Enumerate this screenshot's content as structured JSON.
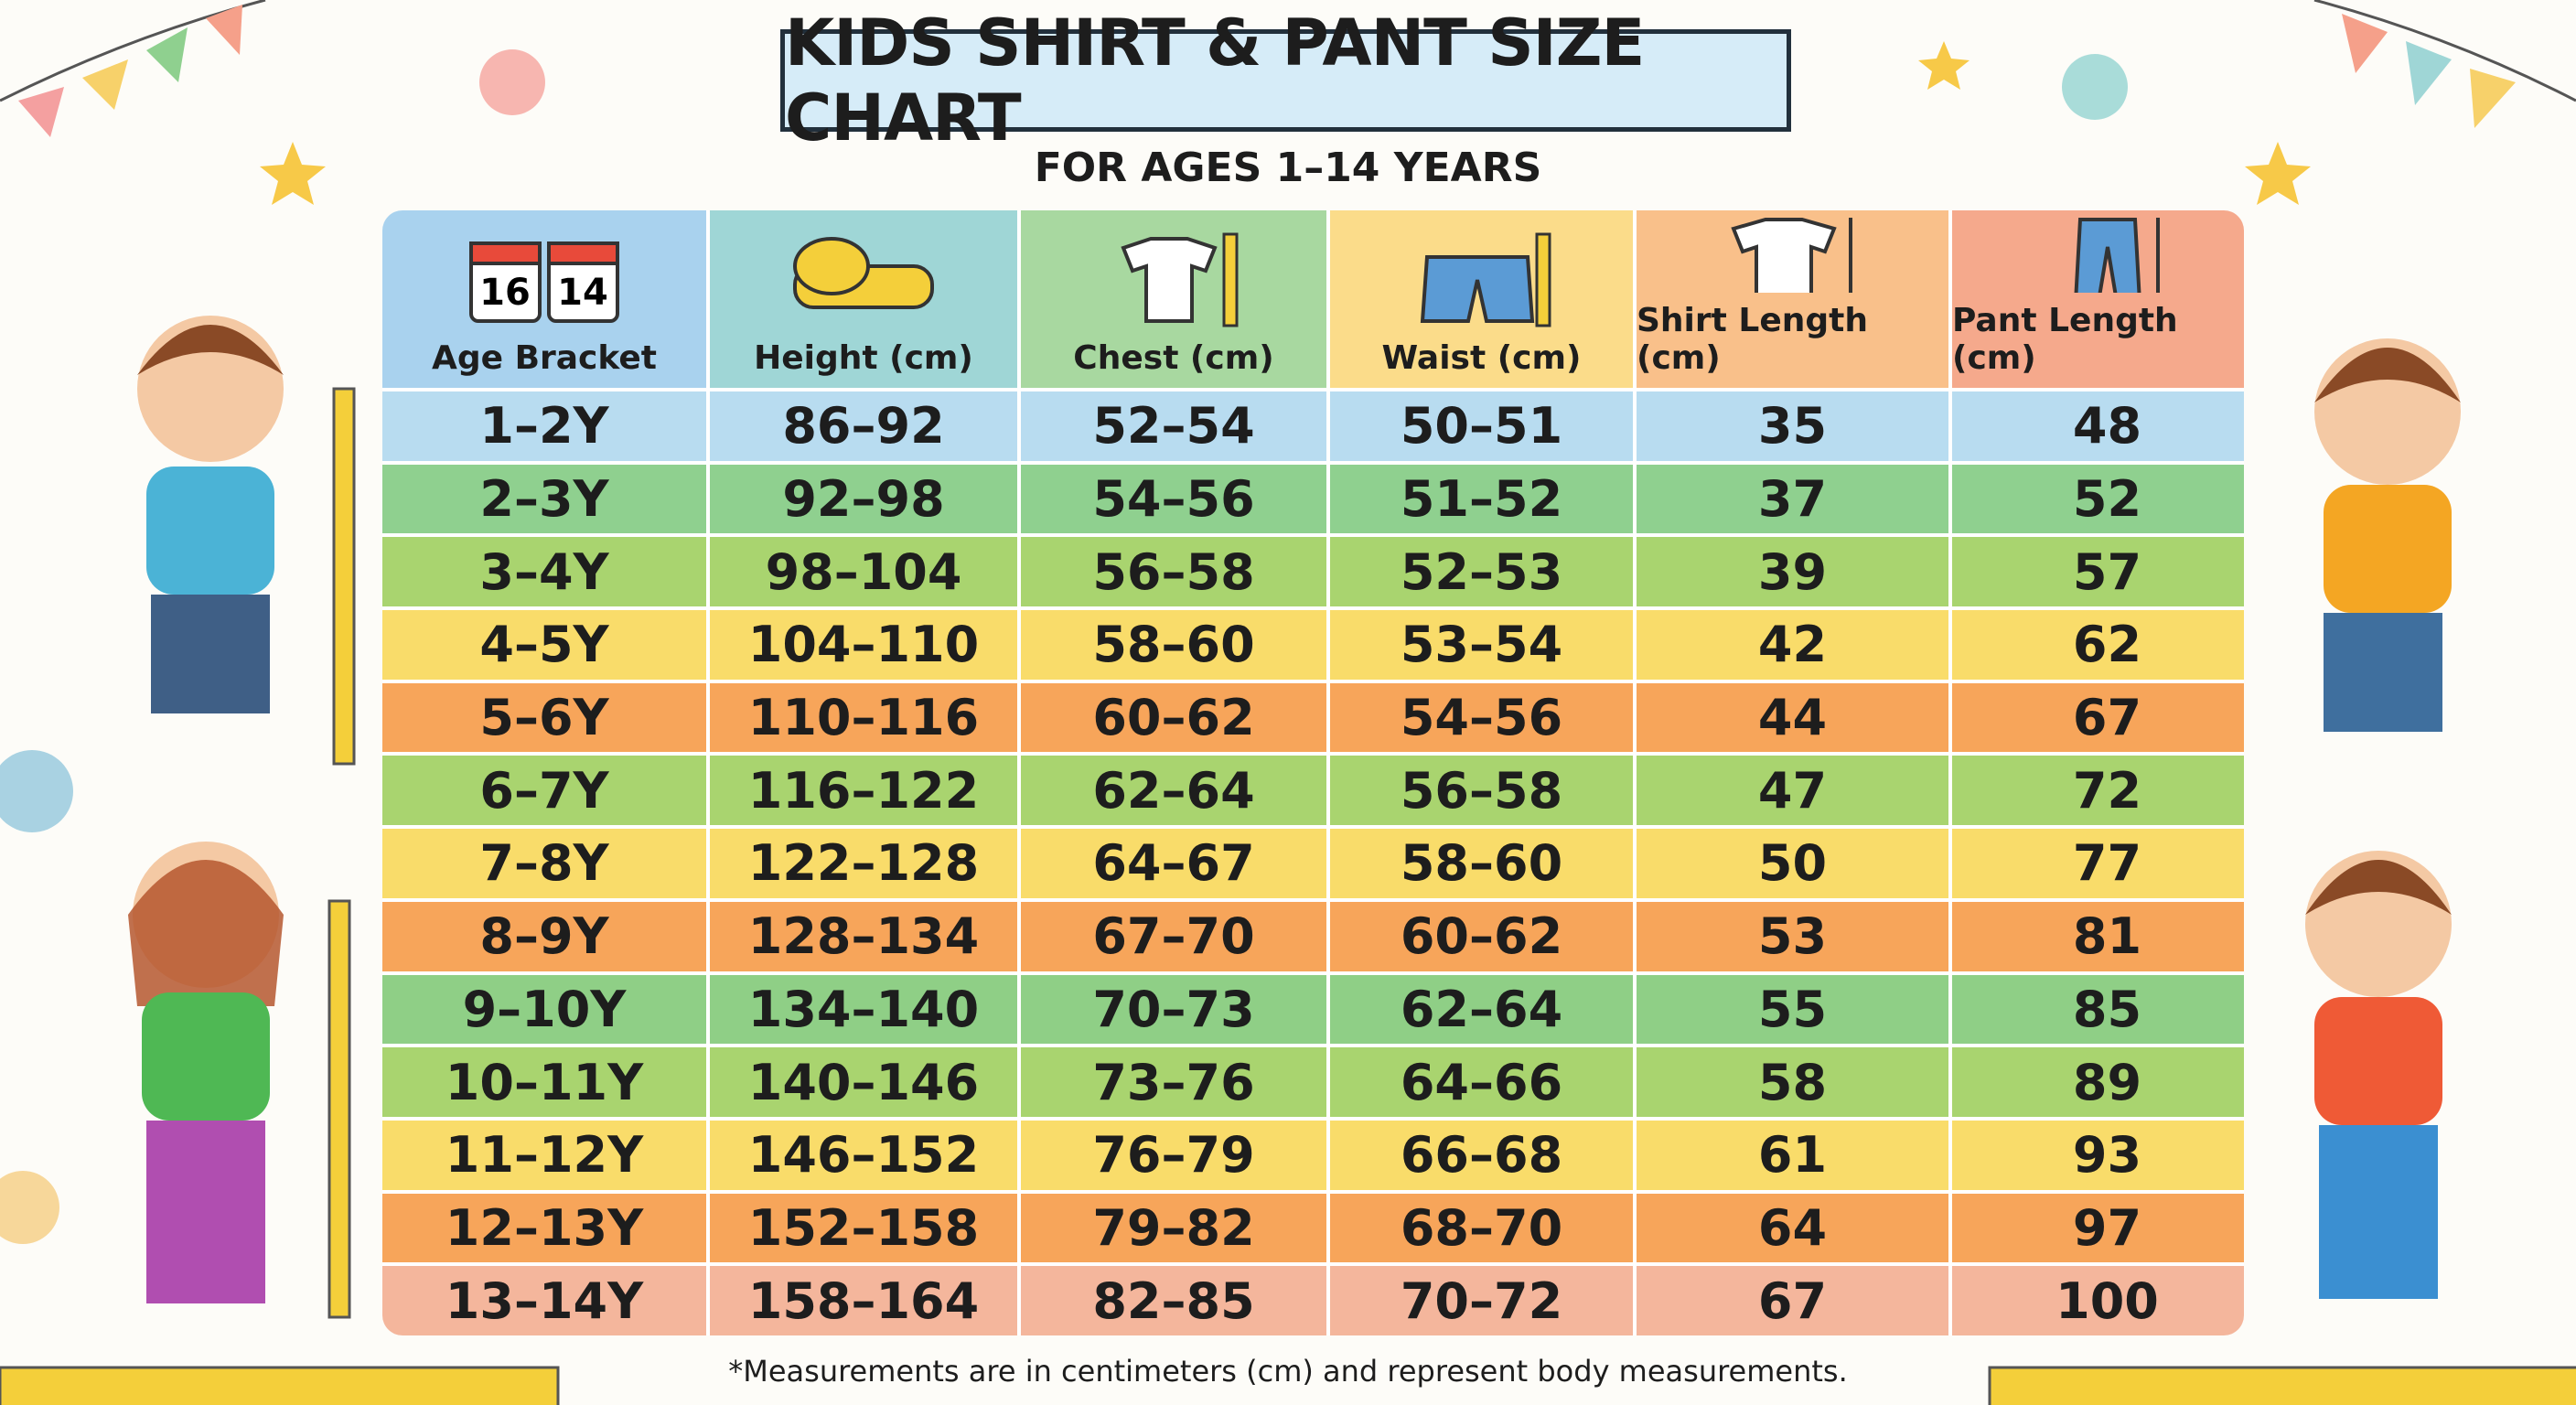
{
  "header": {
    "title": "KIDS SHIRT & PANT SIZE CHART",
    "subtitle": "FOR AGES 1–14 YEARS"
  },
  "table": {
    "calendar_numbers": [
      "16",
      "14"
    ],
    "columns": [
      "Age Bracket",
      "Height (cm)",
      "Chest (cm)",
      "Waist (cm)",
      "Shirt Length (cm)",
      "Pant Length (cm)"
    ],
    "rows": [
      [
        "1–2Y",
        "86–92",
        "52–54",
        "50–51",
        35,
        48
      ],
      [
        "2–3Y",
        "92–98",
        "54–56",
        "51–52",
        37,
        52
      ],
      [
        "3–4Y",
        "98–104",
        "56–58",
        "52–53",
        39,
        57
      ],
      [
        "4–5Y",
        "104–110",
        "58–60",
        "53–54",
        42,
        62
      ],
      [
        "5–6Y",
        "110–116",
        "60–62",
        "54–56",
        44,
        67
      ],
      [
        "6–7Y",
        "116–122",
        "62–64",
        "56–58",
        47,
        72
      ],
      [
        "7–8Y",
        "122–128",
        "64–67",
        "58–60",
        50,
        77
      ],
      [
        "8–9Y",
        "128–134",
        "67–70",
        "60–62",
        53,
        81
      ],
      [
        "9–10Y",
        "134–140",
        "70–73",
        "62–64",
        55,
        85
      ],
      [
        "10–11Y",
        "140–146",
        "73–76",
        "64–66",
        58,
        89
      ],
      [
        "11–12Y",
        "146–152",
        "76–79",
        "66–68",
        61,
        93
      ],
      [
        "12–13Y",
        "152–158",
        "79–82",
        "68–70",
        64,
        97
      ],
      [
        "13–14Y",
        "158–164",
        "82–85",
        "70–72",
        67,
        100
      ]
    ]
  },
  "footnote": "*Measurements are in centimeters (cm) and represent body measurements."
}
